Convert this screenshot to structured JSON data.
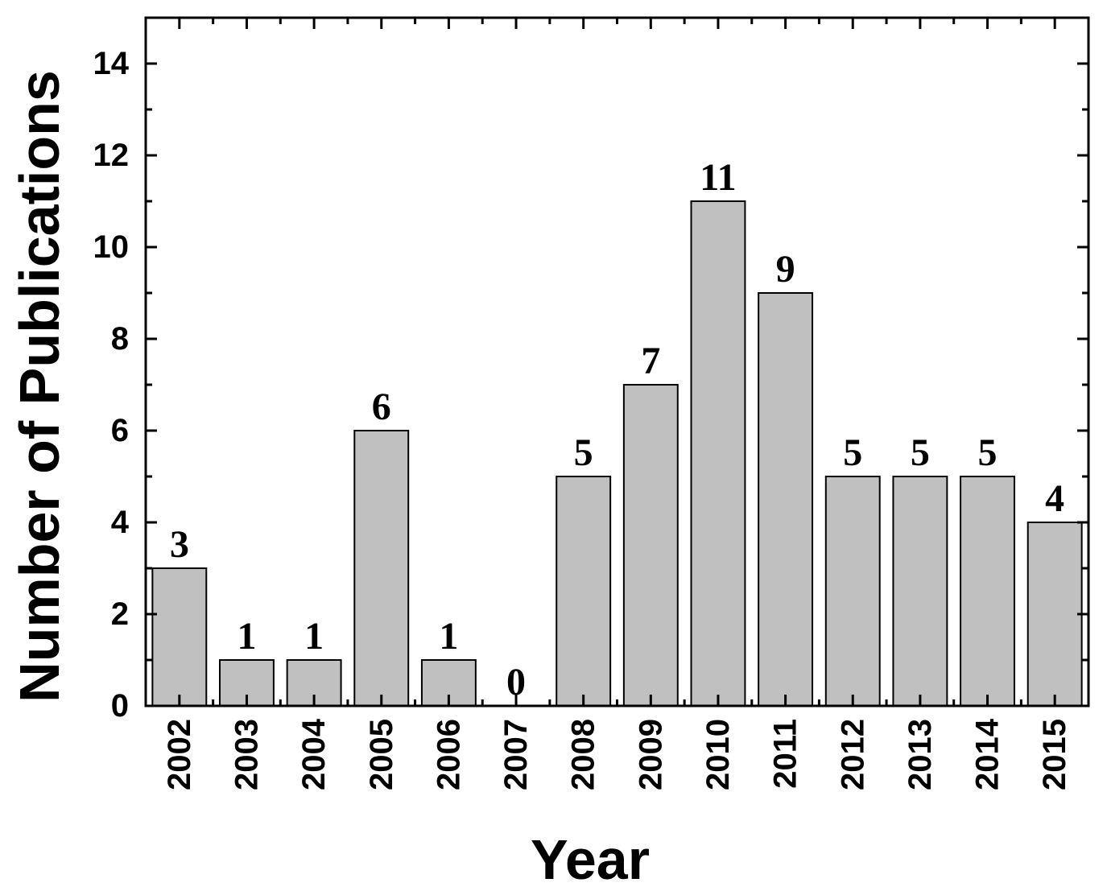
{
  "chart_data": {
    "type": "bar",
    "title": "",
    "xlabel": "Year",
    "ylabel": "Number of Publications",
    "categories": [
      "2002",
      "2003",
      "2004",
      "2005",
      "2006",
      "2007",
      "2008",
      "2009",
      "2010",
      "2011",
      "2012",
      "2013",
      "2014",
      "2015"
    ],
    "values": [
      3,
      1,
      1,
      6,
      1,
      0,
      5,
      7,
      11,
      9,
      5,
      5,
      5,
      4
    ],
    "data_labels": [
      "3",
      "1",
      "1",
      "6",
      "1",
      "0",
      "5",
      "7",
      "11",
      "9",
      "5",
      "5",
      "5",
      "4"
    ],
    "ylim": [
      0,
      15
    ],
    "yticks": [
      0,
      2,
      4,
      6,
      8,
      10,
      12,
      14
    ],
    "ytick_labels": [
      "0",
      "2",
      "4",
      "6",
      "8",
      "10",
      "12",
      "14"
    ],
    "grid": false,
    "legend": "none",
    "colors": {
      "bar_fill": "#c0c0c0",
      "bar_stroke": "#000000",
      "text": "#000000"
    }
  }
}
